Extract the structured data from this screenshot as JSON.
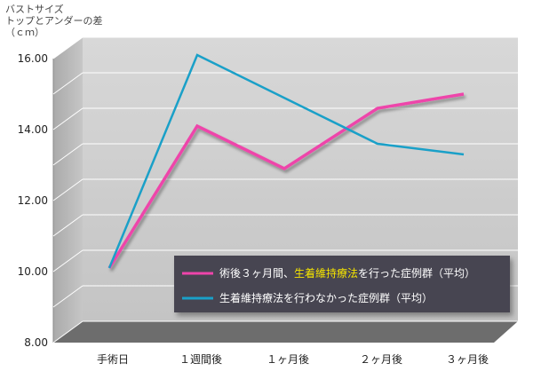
{
  "chart_data": {
    "type": "line",
    "ylabel_lines": [
      "バストサイズ",
      "トップとアンダーの差",
      "（ｃｍ）"
    ],
    "categories": [
      "手術日",
      "１週間後",
      "１ヶ月後",
      "２ヶ月後",
      "３ヶ月後"
    ],
    "ylim": [
      8.0,
      16.0
    ],
    "yticks": [
      "16.00",
      "14.00",
      "12.00",
      "10.00",
      "8.00"
    ],
    "grid": true,
    "legend_position": "bottom-right",
    "series": [
      {
        "name_parts": [
          "術後３ヶ月間、",
          "生着維持療法",
          "を行った症例群（平均）"
        ],
        "color": "#ee44aa",
        "highlight_color": "#f5e400",
        "values": [
          9.5,
          13.5,
          12.3,
          14.0,
          14.4
        ]
      },
      {
        "name": "生着維持療法を行わなかった症例群（平均）",
        "color": "#1aa0c8",
        "values": [
          9.5,
          15.5,
          null,
          13.0,
          12.7
        ]
      }
    ]
  }
}
